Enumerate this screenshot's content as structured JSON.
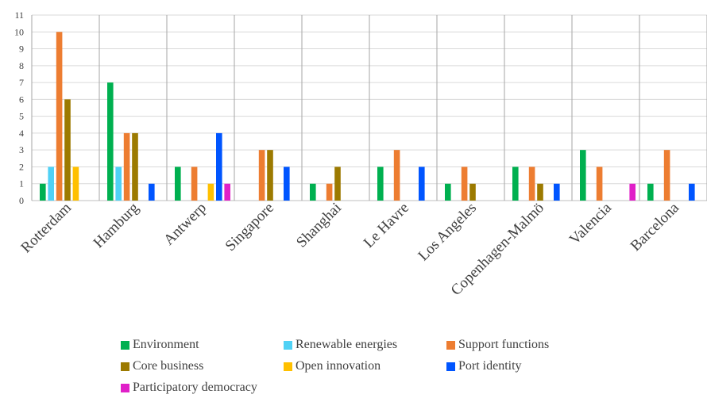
{
  "chart_data": {
    "type": "bar",
    "title": "",
    "xlabel": "",
    "ylabel": "",
    "ylim": [
      0,
      11
    ],
    "yticks": [
      0,
      1,
      2,
      3,
      4,
      5,
      6,
      7,
      8,
      9,
      10,
      11
    ],
    "grid": "horizontal and category separators",
    "legend_position": "bottom",
    "categories": [
      "Rotterdam",
      "Hamburg",
      "Antwerp",
      "Singapore",
      "Shanghai",
      "Le Havre",
      "Los Angeles",
      "Copenhagen-Malmö",
      "Valencia",
      "Barcelona"
    ],
    "series": [
      {
        "name": "Environment",
        "color": "#00b050",
        "values": [
          1,
          7,
          2,
          0,
          1,
          2,
          1,
          2,
          3,
          1
        ]
      },
      {
        "name": "Renewable energies",
        "color": "#4fd1f5",
        "values": [
          2,
          2,
          0,
          0,
          0,
          0,
          0,
          0,
          0,
          0
        ]
      },
      {
        "name": "Support functions",
        "color": "#ed7d31",
        "values": [
          10,
          4,
          2,
          3,
          1,
          3,
          2,
          2,
          2,
          3
        ]
      },
      {
        "name": "Core business",
        "color": "#9c7a00",
        "values": [
          6,
          4,
          0,
          3,
          2,
          0,
          1,
          1,
          0,
          0
        ]
      },
      {
        "name": "Open innovation",
        "color": "#ffc000",
        "values": [
          2,
          0,
          1,
          0,
          0,
          0,
          0,
          0,
          0,
          0
        ]
      },
      {
        "name": "Port identity",
        "color": "#0055ff",
        "values": [
          0,
          1,
          4,
          2,
          0,
          2,
          0,
          1,
          0,
          1
        ]
      },
      {
        "name": "Participatory democracy",
        "color": "#e020c8",
        "values": [
          0,
          0,
          1,
          0,
          0,
          0,
          0,
          0,
          1,
          0
        ]
      }
    ]
  }
}
